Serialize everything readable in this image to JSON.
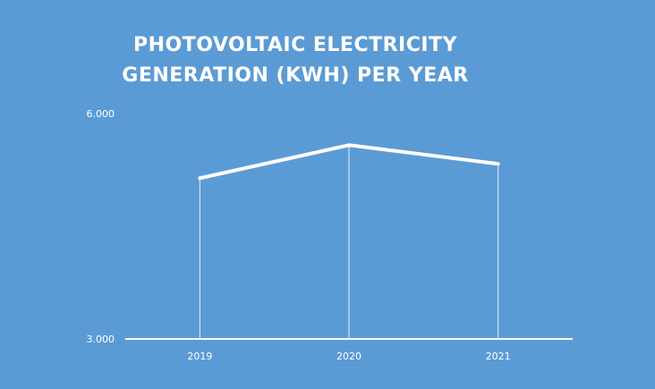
{
  "chart_data": {
    "type": "line",
    "title_lines": [
      "PHOTOVOLTAIC ELECTRICITY",
      "GENERATION (KWH) PER YEAR"
    ],
    "categories": [
      "2019",
      "2020",
      "2021"
    ],
    "series": [
      {
        "values": [
          5.14,
          5.58,
          5.33
        ]
      }
    ],
    "ylim": [
      3.0,
      6.0
    ],
    "y_tick_labels": [
      "3.000",
      "6.000"
    ],
    "xlabel": "",
    "ylabel": "",
    "grid": false,
    "drop_lines": true,
    "colors": {
      "background": "#5b9bd5",
      "line": "#ffffff",
      "text": "#ffffff"
    }
  }
}
